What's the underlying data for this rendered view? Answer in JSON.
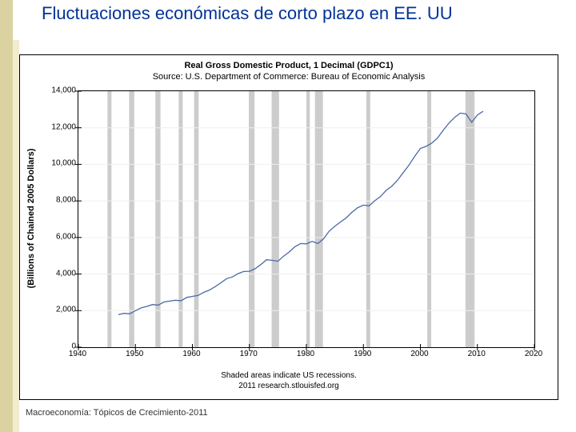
{
  "slide": {
    "title": "Fluctuaciones económicas de corto plazo en EE. UU",
    "footer": "Macroeconomía: Tópicos de Crecimiento-2011"
  },
  "chart": {
    "type": "line",
    "title_line1": "Real Gross Domestic Product, 1 Decimal (GDPC1)",
    "title_line2": "Source: U.S. Department of Commerce: Bureau of Economic Analysis",
    "ylabel": "(Billions of Chained 2005 Dollars)",
    "footer_line1": "Shaded areas indicate US recessions.",
    "footer_line2": "2011 research.stlouisfed.org",
    "xlim": [
      1940,
      2020
    ],
    "ylim": [
      0,
      14000
    ],
    "xticks": [
      1940,
      1950,
      1960,
      1970,
      1980,
      1990,
      2000,
      2010,
      2020
    ],
    "yticks": [
      0,
      2000,
      4000,
      6000,
      8000,
      10000,
      12000,
      14000
    ],
    "ytick_labels": [
      "0",
      "2,000",
      "4,000",
      "6,000",
      "8,000",
      "10,000",
      "12,000",
      "14,000"
    ],
    "line_color": "#4a6aa5",
    "line_width": 1.3,
    "grid_color": "#efefef",
    "background_color": "#ffffff",
    "axis_color": "#000000",
    "tick_fontsize": 10,
    "title_fontsize": 11,
    "label_fontsize": 11,
    "recession_color": "#cccccc",
    "recession_opacity": 1.0,
    "recessions": [
      [
        1945.1,
        1945.8
      ],
      [
        1948.9,
        1949.8
      ],
      [
        1953.5,
        1954.4
      ],
      [
        1957.6,
        1958.3
      ],
      [
        1960.3,
        1961.1
      ],
      [
        1969.9,
        1970.9
      ],
      [
        1973.9,
        1975.2
      ],
      [
        1980.0,
        1980.6
      ],
      [
        1981.5,
        1982.9
      ],
      [
        1990.5,
        1991.2
      ],
      [
        2001.2,
        2001.9
      ],
      [
        2007.9,
        2009.5
      ]
    ],
    "series": {
      "years": [
        1947,
        1948,
        1949,
        1950,
        1951,
        1952,
        1953,
        1954,
        1955,
        1956,
        1957,
        1958,
        1959,
        1960,
        1961,
        1962,
        1963,
        1964,
        1965,
        1966,
        1967,
        1968,
        1969,
        1970,
        1971,
        1972,
        1973,
        1974,
        1975,
        1976,
        1977,
        1978,
        1979,
        1980,
        1981,
        1982,
        1983,
        1984,
        1985,
        1986,
        1987,
        1988,
        1989,
        1990,
        1991,
        1992,
        1993,
        1994,
        1995,
        1996,
        1997,
        1998,
        1999,
        2000,
        2001,
        2002,
        2003,
        2004,
        2005,
        2006,
        2007,
        2008,
        2009,
        2010,
        2011
      ],
      "values": [
        1780,
        1850,
        1830,
        2000,
        2150,
        2230,
        2330,
        2300,
        2470,
        2520,
        2570,
        2540,
        2720,
        2780,
        2830,
        3000,
        3130,
        3310,
        3520,
        3750,
        3840,
        4020,
        4140,
        4150,
        4290,
        4520,
        4780,
        4750,
        4700,
        4980,
        5210,
        5500,
        5670,
        5650,
        5790,
        5670,
        5930,
        6350,
        6620,
        6850,
        7080,
        7380,
        7630,
        7770,
        7730,
        8010,
        8240,
        8580,
        8810,
        9140,
        9550,
        9960,
        10440,
        10870,
        10980,
        11160,
        11440,
        11860,
        12250,
        12570,
        12800,
        12760,
        12300,
        12700,
        12900
      ]
    }
  },
  "colors": {
    "slide_title": "#003399",
    "left_stripe": "#b5a642"
  }
}
